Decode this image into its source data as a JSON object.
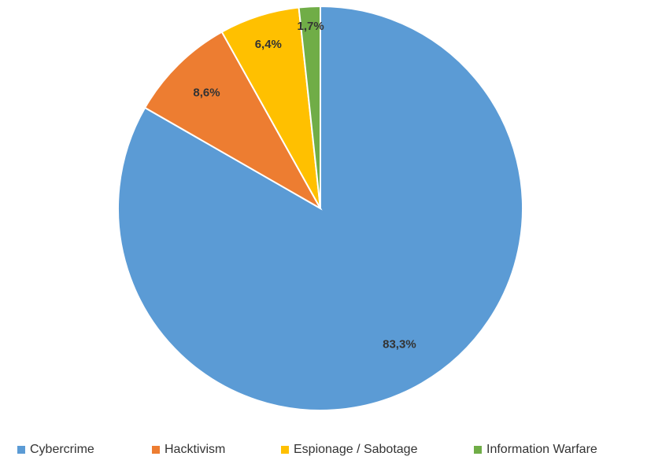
{
  "chart_data": {
    "type": "pie",
    "title": "",
    "categories": [
      "Cybercrime",
      "Hacktivism",
      "Espionage / Sabotage",
      "Information Warfare"
    ],
    "values": [
      83.3,
      8.6,
      6.4,
      1.7
    ],
    "data_labels": [
      "83,3%",
      "8,6%",
      "6,4%",
      "1,7%"
    ],
    "colors": [
      "#5b9bd5",
      "#ed7d31",
      "#ffc000",
      "#70ad47"
    ],
    "start_angle_deg": 0,
    "direction": "clockwise",
    "legend_position": "bottom"
  },
  "legend": {
    "items": [
      {
        "label": "Cybercrime",
        "color": "#5b9bd5"
      },
      {
        "label": "Hacktivism",
        "color": "#ed7d31"
      },
      {
        "label": "Espionage / Sabotage",
        "color": "#ffc000"
      },
      {
        "label": "Information Warfare",
        "color": "#70ad47"
      }
    ]
  }
}
